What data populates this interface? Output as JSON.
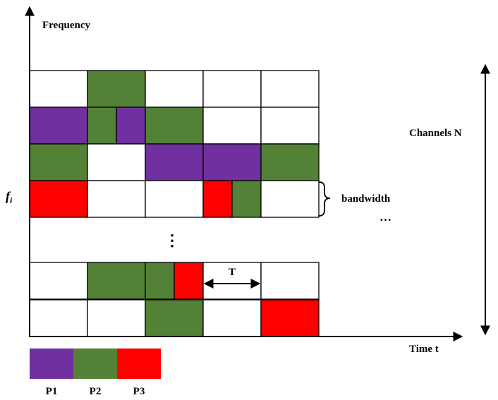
{
  "labels": {
    "y_axis": "Frequency",
    "x_axis": "Time t",
    "channels": "Channels N",
    "f_symbol": "f",
    "f_subscript": "i",
    "bandwidth": "bandwidth",
    "interval": "T",
    "h_ellipsis": "…",
    "v_ellipsis": "⋮"
  },
  "colors": {
    "P1": "#7030a0",
    "P2": "#538135",
    "P3": "#ff0000",
    "empty": "#ffffff",
    "line": "#000000"
  },
  "legend": [
    {
      "key": "P1",
      "label": "P1"
    },
    {
      "key": "P2",
      "label": "P2"
    },
    {
      "key": "P3",
      "label": "P3"
    }
  ],
  "grid": {
    "upper_rows": [
      [
        [
          "E"
        ],
        [
          "P2"
        ],
        [
          "E"
        ],
        [
          "E"
        ],
        [
          "E"
        ]
      ],
      [
        [
          "P1"
        ],
        [
          "P2",
          "P1"
        ],
        [
          "P2"
        ],
        [
          "E"
        ],
        [
          "E"
        ]
      ],
      [
        [
          "P2"
        ],
        [
          "E"
        ],
        [
          "P1"
        ],
        [
          "P1"
        ],
        [
          "P2"
        ]
      ],
      [
        [
          "P3"
        ],
        [
          "E"
        ],
        [
          "E"
        ],
        [
          "P3",
          "P2"
        ],
        [
          "E"
        ]
      ]
    ],
    "lower_rows": [
      [
        [
          "E"
        ],
        [
          "P2"
        ],
        [
          "P2",
          "P3"
        ],
        [
          "E"
        ],
        [
          "E"
        ]
      ],
      [
        [
          "E"
        ],
        [
          "E"
        ],
        [
          "P2"
        ],
        [
          "E"
        ],
        [
          "P3"
        ]
      ]
    ]
  }
}
